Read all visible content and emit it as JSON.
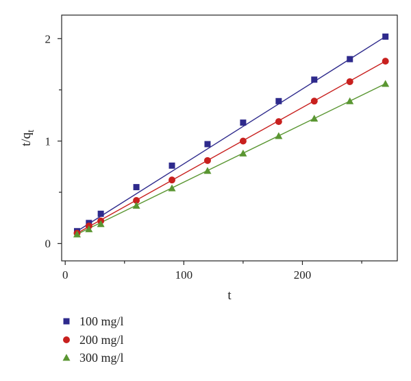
{
  "chart_data": {
    "type": "scatter",
    "xlabel": "t",
    "ylabel": "t/q",
    "ylabel_subscript": "t",
    "xlim": [
      -3,
      280
    ],
    "ylim": [
      -0.17,
      2.23
    ],
    "x_ticks": [
      0,
      100,
      200
    ],
    "x_minor_ticks": [
      50,
      150,
      250
    ],
    "y_ticks": [
      0,
      1,
      2
    ],
    "y_minor_ticks": [
      0.5,
      1.5
    ],
    "grid": false,
    "legend_position": "bottom-left",
    "fit_lines": true,
    "series": [
      {
        "name": "100 mg/l",
        "marker": "square",
        "color": "#2e2a8c",
        "x": [
          10,
          20,
          30,
          60,
          90,
          120,
          150,
          180,
          210,
          240,
          270
        ],
        "y": [
          0.12,
          0.2,
          0.29,
          0.55,
          0.76,
          0.97,
          1.18,
          1.39,
          1.6,
          1.8,
          2.02
        ],
        "fit": [
          0.12,
          2.02
        ]
      },
      {
        "name": "200 mg/l",
        "marker": "circle",
        "color": "#c8201e",
        "x": [
          10,
          20,
          30,
          60,
          90,
          120,
          150,
          180,
          210,
          240,
          270
        ],
        "y": [
          0.1,
          0.17,
          0.22,
          0.42,
          0.62,
          0.81,
          1.0,
          1.19,
          1.39,
          1.58,
          1.78
        ],
        "fit": [
          0.1,
          1.78
        ]
      },
      {
        "name": "300 mg/l",
        "marker": "triangle",
        "color": "#5a9632",
        "x": [
          10,
          20,
          30,
          60,
          90,
          120,
          150,
          180,
          210,
          240,
          270
        ],
        "y": [
          0.09,
          0.14,
          0.19,
          0.37,
          0.54,
          0.71,
          0.88,
          1.05,
          1.22,
          1.39,
          1.56
        ],
        "fit": [
          0.09,
          1.56
        ]
      }
    ]
  }
}
